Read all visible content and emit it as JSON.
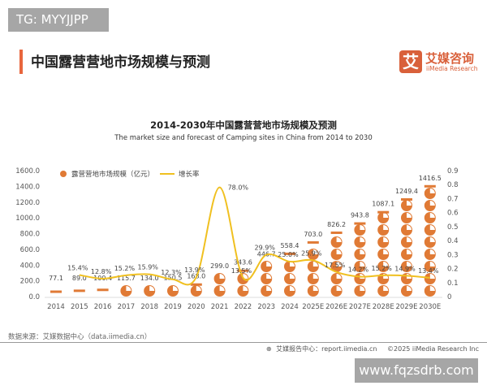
{
  "watermark_top": "TG: MYYJJPP",
  "header": {
    "title": "中国露营营地市场规模与预测",
    "logo_cn": "艾媒咨询",
    "logo_en": "iiMedia Research",
    "logo_mark": "艾"
  },
  "colors": {
    "accent": "#e8663d",
    "bar": "#e07a35",
    "line": "#f0c020"
  },
  "chart_data": {
    "type": "bar+line",
    "title": "2014-2030年中国露营营地市场规模及预测",
    "subtitle": "The market size and forecast of Camping sites in China from 2014 to 2030",
    "categories": [
      "2014",
      "2015",
      "2016",
      "2017",
      "2018",
      "2019",
      "2020",
      "2021",
      "2022",
      "2023",
      "2024",
      "2025E",
      "2026E",
      "2027E",
      "2028E",
      "2029E",
      "2030E"
    ],
    "series": [
      {
        "name": "露营营地市场规模（亿元）",
        "type": "pictogram-bar",
        "axis": "left",
        "values": [
          77.1,
          89.0,
          100.4,
          115.7,
          134.0,
          150.5,
          168.0,
          299.0,
          343.6,
          446.7,
          558.4,
          703.0,
          826.2,
          943.8,
          1087.1,
          1249.4,
          1416.5
        ],
        "labels": [
          "77.1",
          "89.0",
          "100.4",
          "115.7",
          "134.0",
          "150.5",
          "168.0",
          "299.0",
          "343.6",
          "446.7",
          "558.4",
          "703.0",
          "826.2",
          "943.8",
          "1087.1",
          "1249.4",
          "1416.5"
        ]
      },
      {
        "name": "增长率",
        "type": "line",
        "axis": "right",
        "values": [
          null,
          0.154,
          0.128,
          0.152,
          0.159,
          0.123,
          0.139,
          0.78,
          0.135,
          0.299,
          0.25,
          0.259,
          0.175,
          0.142,
          0.152,
          0.149,
          0.134
        ],
        "labels": [
          "",
          "15.4%",
          "12.8%",
          "15.2%",
          "15.9%",
          "12.3%",
          "13.9%",
          "78.0%",
          "13.5%",
          "29.9%",
          "25.0%",
          "25.9%",
          "17.5%",
          "14.2%",
          "15.2%",
          "14.9%",
          "13.4%"
        ]
      }
    ],
    "y_left": {
      "range": [
        0,
        1600
      ],
      "ticks": [
        "0.0",
        "200.0",
        "400.0",
        "600.0",
        "800.0",
        "1000.0",
        "1200.0",
        "1400.0",
        "1600.0"
      ]
    },
    "y_right": {
      "range": [
        0,
        0.9
      ],
      "ticks": [
        "0",
        "0.1",
        "0.2",
        "0.3",
        "0.4",
        "0.5",
        "0.6",
        "0.7",
        "0.8",
        "0.9"
      ]
    },
    "legend_position": "top-left",
    "grid": false
  },
  "footer": {
    "source": "数据来源：艾媒数据中心（data.iimedia.cn）",
    "report": "艾媒报告中心：report.iimedia.cn",
    "copyright": "©2025  iiMedia Research  Inc"
  },
  "watermark_bottom": "www.fqzsdrb.com"
}
